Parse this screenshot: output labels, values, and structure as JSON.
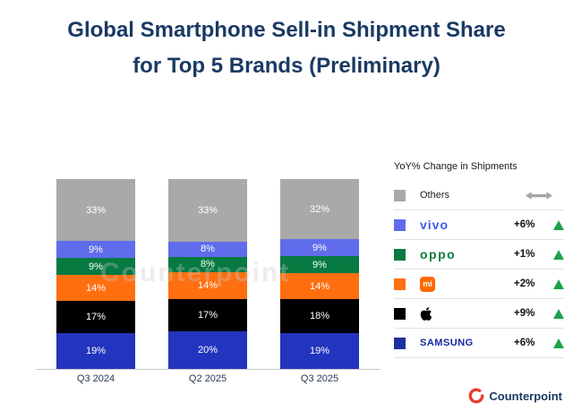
{
  "title": {
    "line1": "Global Smartphone Sell-in Shipment Share",
    "line2": "for Top 5 Brands (Preliminary)"
  },
  "watermark": "Counterpoint",
  "chart_data": {
    "type": "bar",
    "stacked": true,
    "title": "Global Smartphone Sell-in Shipment Share for Top 5 Brands (Preliminary)",
    "categories": [
      "Q3 2024",
      "Q2 2025",
      "Q3 2025"
    ],
    "series": [
      {
        "name": "Samsung",
        "color": "#2335be",
        "values": [
          19,
          20,
          19
        ]
      },
      {
        "name": "Apple",
        "color": "#000000",
        "values": [
          17,
          17,
          18
        ]
      },
      {
        "name": "Xiaomi",
        "color": "#ff6f0f",
        "values": [
          14,
          14,
          14
        ]
      },
      {
        "name": "OPPO",
        "color": "#067a41",
        "values": [
          9,
          8,
          9
        ]
      },
      {
        "name": "vivo",
        "color": "#5f6ceb",
        "values": [
          9,
          8,
          9
        ]
      },
      {
        "name": "Others",
        "color": "#a9a9a9",
        "values": [
          33,
          33,
          32
        ]
      }
    ],
    "value_suffix": "%",
    "ylim": [
      0,
      100
    ],
    "grid": false,
    "legend_position": "right"
  },
  "legend": {
    "title": "YoY% Change in Shipments",
    "rows": [
      {
        "brand": "Others",
        "logo_text": "Others",
        "swatch": "#a9a9a9",
        "change": "",
        "trend": "flat"
      },
      {
        "brand": "vivo",
        "logo_text": "vivo",
        "swatch": "#5f6ceb",
        "change": "+6%",
        "trend": "up"
      },
      {
        "brand": "OPPO",
        "logo_text": "oppo",
        "swatch": "#067a41",
        "change": "+1%",
        "trend": "up"
      },
      {
        "brand": "Xiaomi",
        "logo_text": "mi",
        "swatch": "#ff6f0f",
        "change": "+2%",
        "trend": "up"
      },
      {
        "brand": "Apple",
        "logo_text": "",
        "swatch": "#000000",
        "change": "+9%",
        "trend": "up"
      },
      {
        "brand": "Samsung",
        "logo_text": "SAMSUNG",
        "swatch": "#1f2f9e",
        "change": "+6%",
        "trend": "up"
      }
    ]
  },
  "footer": {
    "logo_text": "Counterpoint"
  }
}
